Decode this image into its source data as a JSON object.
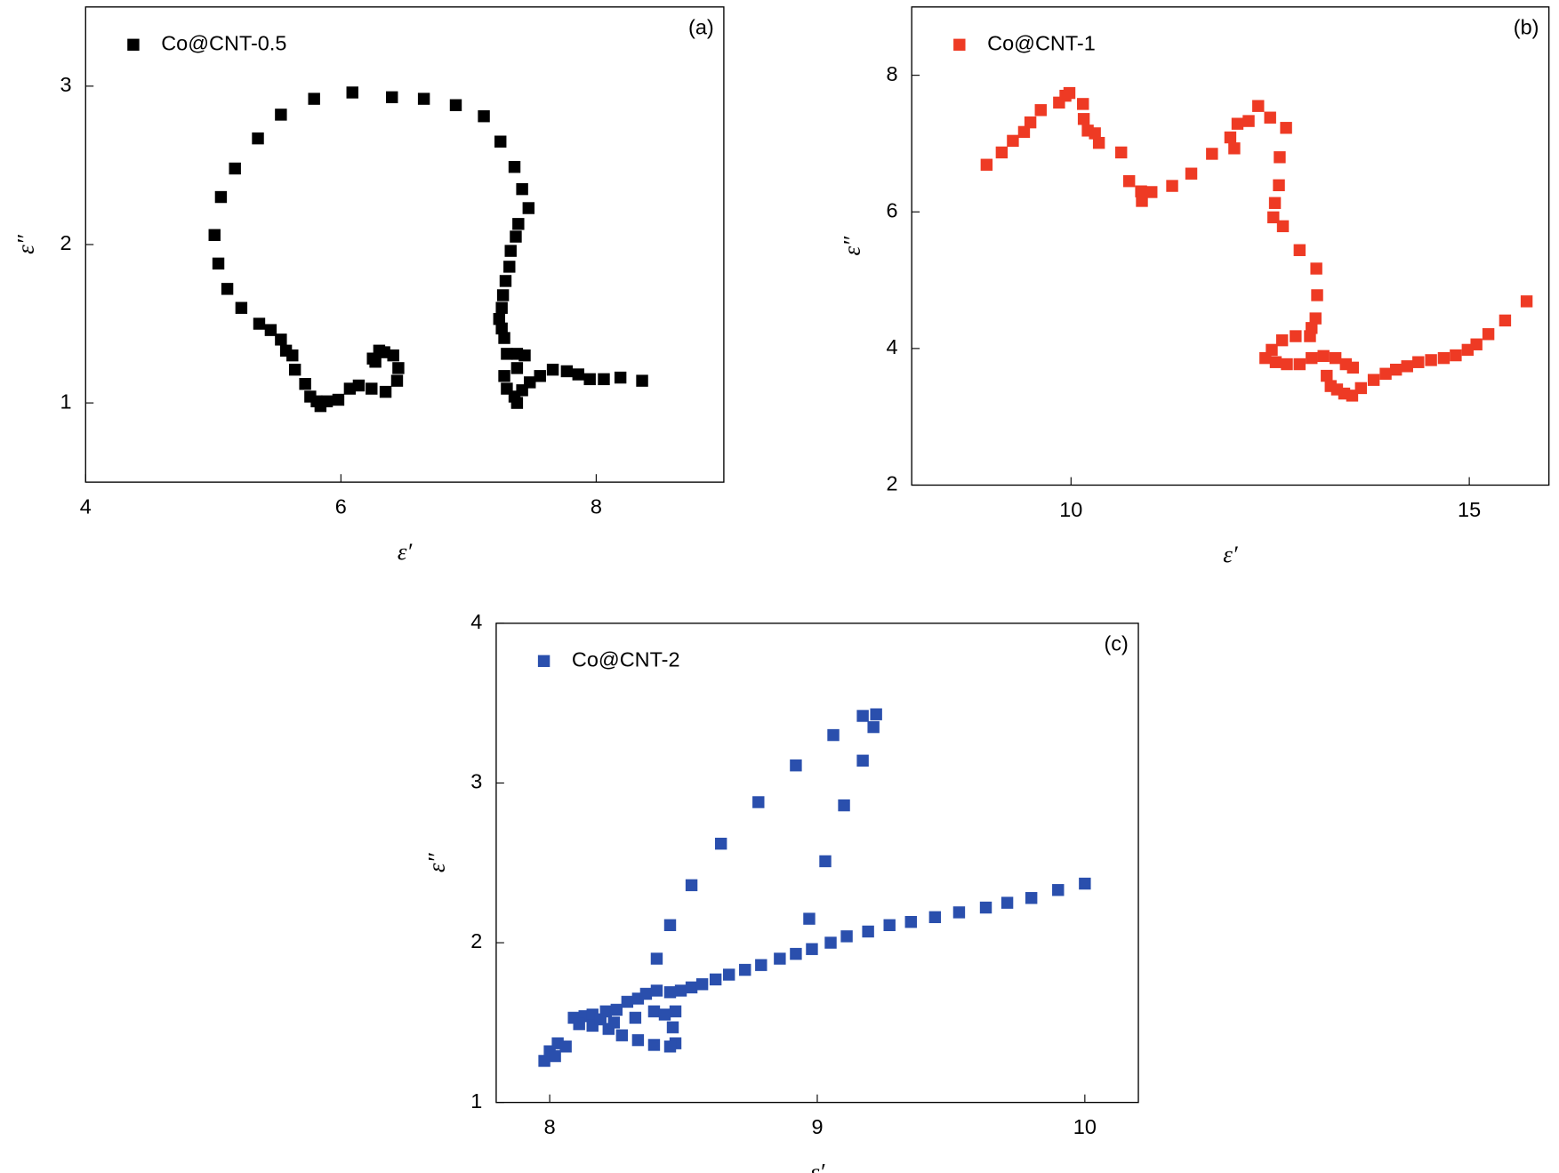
{
  "chart_data": [
    {
      "type": "scatter",
      "annotation": "(a)",
      "x_label": "ε′",
      "y_label": "ε″",
      "legend": "upper left",
      "xlim": [
        4,
        9
      ],
      "ylim": [
        0.5,
        3.5
      ],
      "xticks": [
        4,
        6,
        8
      ],
      "yticks": [
        1,
        2,
        3
      ],
      "x": [
        5.01,
        5.06,
        5.17,
        5.35,
        5.53,
        5.79,
        6.09,
        6.4,
        6.65,
        6.9,
        7.12,
        7.25,
        7.36,
        7.42,
        7.47,
        7.39,
        7.37,
        7.33,
        7.32,
        7.29,
        7.27,
        7.26,
        7.24,
        7.26,
        7.28,
        7.3,
        7.38,
        7.44,
        7.38,
        7.28,
        7.3,
        7.36,
        7.38,
        7.42,
        7.48,
        7.56,
        7.66,
        7.77,
        7.86,
        7.95,
        8.06,
        8.19,
        8.36,
        5.04,
        5.11,
        5.22,
        5.36,
        5.45,
        5.53,
        5.57,
        5.62,
        5.64,
        5.72,
        5.76,
        5.81,
        5.84,
        5.89,
        5.98,
        6.07,
        6.14,
        6.24,
        6.35,
        6.44,
        6.45,
        6.41,
        6.34,
        6.3,
        6.27,
        6.25
      ],
      "series": [
        {
          "name": "Co@CNT-0.5",
          "color": "#000000",
          "values": [
            2.06,
            2.3,
            2.48,
            2.67,
            2.82,
            2.92,
            2.96,
            2.93,
            2.92,
            2.88,
            2.81,
            2.65,
            2.49,
            2.35,
            2.23,
            2.13,
            2.05,
            1.96,
            1.86,
            1.77,
            1.68,
            1.6,
            1.53,
            1.47,
            1.41,
            1.31,
            1.31,
            1.3,
            1.22,
            1.17,
            1.09,
            1.04,
            1.0,
            1.08,
            1.13,
            1.17,
            1.21,
            1.2,
            1.18,
            1.15,
            1.15,
            1.16,
            1.14,
            1.88,
            1.72,
            1.6,
            1.5,
            1.46,
            1.4,
            1.33,
            1.3,
            1.21,
            1.12,
            1.04,
            1.01,
            0.98,
            1.01,
            1.02,
            1.09,
            1.11,
            1.09,
            1.07,
            1.14,
            1.22,
            1.3,
            1.32,
            1.33,
            1.26,
            1.28
          ]
        }
      ]
    },
    {
      "type": "scatter",
      "annotation": "(b)",
      "x_label": "ε′",
      "y_label": "ε″",
      "legend": "upper left",
      "xlim": [
        8,
        16
      ],
      "ylim": [
        2,
        9
      ],
      "xticks": [
        10,
        15
      ],
      "yticks": [
        2,
        4,
        6,
        8
      ],
      "x": [
        8.94,
        9.13,
        9.27,
        9.41,
        9.49,
        9.62,
        9.85,
        9.93,
        9.98,
        10.15,
        10.16,
        10.21,
        10.3,
        10.35,
        10.63,
        10.73,
        10.88,
        10.89,
        11.01,
        11.27,
        11.51,
        11.77,
        12.0,
        12.05,
        12.09,
        12.23,
        12.35,
        12.5,
        12.7,
        12.62,
        12.61,
        12.56,
        12.54,
        12.66,
        12.87,
        13.08,
        13.09,
        13.07,
        13.02,
        13.0,
        12.82,
        12.65,
        12.52,
        12.44,
        12.57,
        12.71,
        12.87,
        13.02,
        13.17,
        13.32,
        13.45,
        13.54,
        13.21,
        13.26,
        13.34,
        13.43,
        13.53,
        13.64,
        13.8,
        13.95,
        14.08,
        14.22,
        14.36,
        14.52,
        14.68,
        14.83,
        14.98,
        15.09,
        15.24,
        15.45,
        15.72
      ],
      "series": [
        {
          "name": "Co@CNT-1",
          "color": "#ee3a24",
          "values": [
            6.69,
            6.87,
            7.04,
            7.17,
            7.31,
            7.49,
            7.6,
            7.7,
            7.74,
            7.58,
            7.36,
            7.19,
            7.15,
            7.01,
            6.87,
            6.45,
            6.3,
            6.16,
            6.29,
            6.38,
            6.56,
            6.85,
            7.09,
            6.93,
            7.29,
            7.33,
            7.55,
            7.38,
            7.23,
            6.8,
            6.39,
            6.13,
            5.92,
            5.79,
            5.44,
            5.17,
            4.78,
            4.44,
            4.3,
            4.18,
            4.18,
            4.12,
            3.98,
            3.86,
            3.8,
            3.77,
            3.77,
            3.86,
            3.89,
            3.86,
            3.77,
            3.72,
            3.6,
            3.45,
            3.4,
            3.34,
            3.31,
            3.42,
            3.54,
            3.63,
            3.69,
            3.74,
            3.8,
            3.83,
            3.86,
            3.9,
            3.98,
            4.06,
            4.21,
            4.41,
            4.69
          ]
        }
      ]
    },
    {
      "type": "scatter",
      "annotation": "(c)",
      "x_label": "ε′",
      "y_label": "ε″",
      "legend": "upper left",
      "xlim": [
        7.8,
        10.2
      ],
      "ylim": [
        1,
        4
      ],
      "xticks": [
        8,
        9,
        10
      ],
      "yticks": [
        1,
        2,
        3,
        4
      ],
      "x": [
        7.98,
        8.0,
        8.02,
        8.03,
        8.06,
        8.09,
        8.13,
        8.16,
        8.21,
        8.25,
        8.29,
        8.33,
        8.36,
        8.4,
        8.45,
        8.49,
        8.53,
        8.57,
        8.62,
        8.67,
        8.73,
        8.79,
        8.86,
        8.92,
        8.98,
        9.05,
        9.11,
        9.19,
        9.27,
        9.35,
        9.44,
        9.53,
        9.63,
        9.71,
        9.8,
        9.9,
        10.0,
        8.4,
        8.45,
        8.53,
        8.64,
        8.78,
        8.92,
        9.06,
        9.17,
        9.22,
        9.21,
        9.17,
        9.1,
        9.03,
        8.97,
        8.47,
        8.46,
        8.47,
        8.45,
        8.39,
        8.33,
        8.27,
        8.22,
        8.16,
        8.11,
        8.39,
        8.43,
        8.32,
        8.24,
        8.19
      ],
      "series": [
        {
          "name": "Co@CNT-2",
          "color": "#2a4fad",
          "values": [
            1.26,
            1.32,
            1.29,
            1.37,
            1.35,
            1.53,
            1.54,
            1.55,
            1.57,
            1.58,
            1.63,
            1.65,
            1.68,
            1.7,
            1.69,
            1.7,
            1.72,
            1.74,
            1.77,
            1.8,
            1.83,
            1.86,
            1.9,
            1.93,
            1.96,
            2.0,
            2.04,
            2.07,
            2.11,
            2.13,
            2.16,
            2.19,
            2.22,
            2.25,
            2.28,
            2.33,
            2.37,
            1.9,
            2.11,
            2.36,
            2.62,
            2.88,
            3.11,
            3.3,
            3.42,
            3.43,
            3.35,
            3.14,
            2.86,
            2.51,
            2.15,
            1.57,
            1.47,
            1.37,
            1.35,
            1.36,
            1.39,
            1.42,
            1.46,
            1.48,
            1.49,
            1.57,
            1.55,
            1.53,
            1.5,
            1.52
          ]
        }
      ]
    }
  ]
}
